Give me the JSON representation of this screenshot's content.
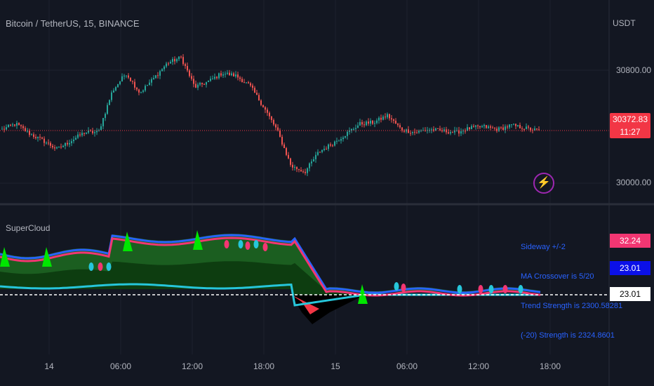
{
  "header": {
    "symbol_line": "Bitcoin / TetherUS, 15, BINANCE",
    "currency": "USDT"
  },
  "price_axis": {
    "ticks": [
      {
        "value": 30800,
        "label": "30800.00"
      },
      {
        "value": 30000,
        "label": "30000.00"
      }
    ],
    "last_price": {
      "value": 30372.83,
      "label": "30372.83",
      "countdown": "11:27"
    }
  },
  "indicator": {
    "title": "SuperCloud",
    "texts": {
      "sideway": "Sideway +/-2",
      "crossover": "MA Crossover is 5/20",
      "trend": "Trend Strength is 2300.58281",
      "strength20": "(-20) Strength is 2324.8601"
    },
    "tags": [
      {
        "label": "32.24",
        "bg": "#f23672",
        "fg": "#ffffff"
      },
      {
        "label": "23.01",
        "bg": "#0b10e8",
        "fg": "#ffffff"
      },
      {
        "label": "23.01",
        "bg": "#ffffff",
        "fg": "#000000"
      }
    ]
  },
  "time_axis": {
    "labels": [
      "14",
      "06:00",
      "12:00",
      "18:00",
      "15",
      "06:00",
      "12:00",
      "18:00"
    ]
  },
  "colors": {
    "up": "#26a69a",
    "down": "#ef5350",
    "background": "#131722",
    "last_price": "#f23645"
  },
  "chart_data": {
    "type": "candlestick",
    "y_range": [
      29950,
      31000
    ],
    "x_labels": [
      "14",
      "06:00",
      "12:00",
      "18:00",
      "15",
      "06:00",
      "12:00",
      "18:00"
    ],
    "waypoints": [
      30380,
      30420,
      30350,
      30300,
      30240,
      30300,
      30360,
      30360,
      30650,
      30780,
      30640,
      30740,
      30850,
      30890,
      30680,
      30720,
      30780,
      30760,
      30690,
      30540,
      30370,
      30120,
      30080,
      30220,
      30280,
      30350,
      30420,
      30430,
      30480,
      30380,
      30360,
      30380,
      30370,
      30360,
      30390,
      30400,
      30380,
      30410,
      30390,
      30370
    ],
    "last_price": 30372.83
  }
}
